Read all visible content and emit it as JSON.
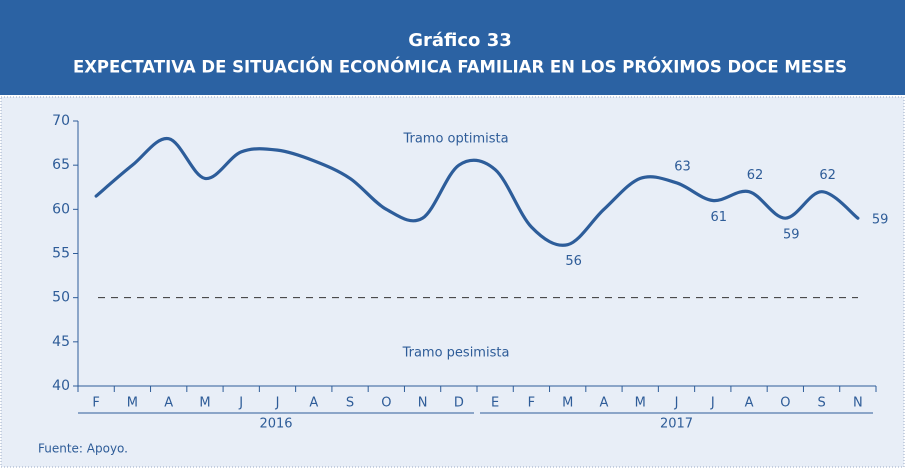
{
  "chart_data": {
    "type": "line",
    "title": "Gráfico 33",
    "subtitle": "EXPECTATIVA DE SITUACIÓN ECONÓMICA FAMILIAR EN LOS PRÓXIMOS DOCE MESES",
    "categories": [
      "F",
      "M",
      "A",
      "M",
      "J",
      "J",
      "A",
      "S",
      "O",
      "N",
      "D",
      "E",
      "F",
      "M",
      "A",
      "M",
      "J",
      "J",
      "A",
      "O",
      "S",
      "N"
    ],
    "groups": [
      {
        "label": "2016",
        "count": 11
      },
      {
        "label": "2017",
        "count": 11
      }
    ],
    "series": [
      {
        "name": "Expectativa",
        "color": "#2d5d9a",
        "values": [
          61.5,
          65,
          68,
          63.5,
          66.5,
          66.7,
          65.5,
          63.5,
          60,
          59,
          65,
          64.5,
          58,
          56,
          60,
          63.5,
          63,
          61,
          62,
          59,
          62,
          59
        ],
        "value_labels": [
          null,
          null,
          null,
          null,
          null,
          null,
          null,
          null,
          null,
          null,
          null,
          null,
          null,
          "56",
          null,
          null,
          "63",
          "61",
          "62",
          "59",
          "62",
          "59"
        ]
      }
    ],
    "ylim": [
      40,
      70
    ],
    "yticks": [
      40,
      45,
      50,
      55,
      60,
      65,
      70
    ],
    "reference_line": {
      "value": 50,
      "style": "dashed"
    },
    "annotations": [
      "Tramo optimista",
      "Tramo pesimista"
    ],
    "source": "Fuente: Apoyo."
  }
}
